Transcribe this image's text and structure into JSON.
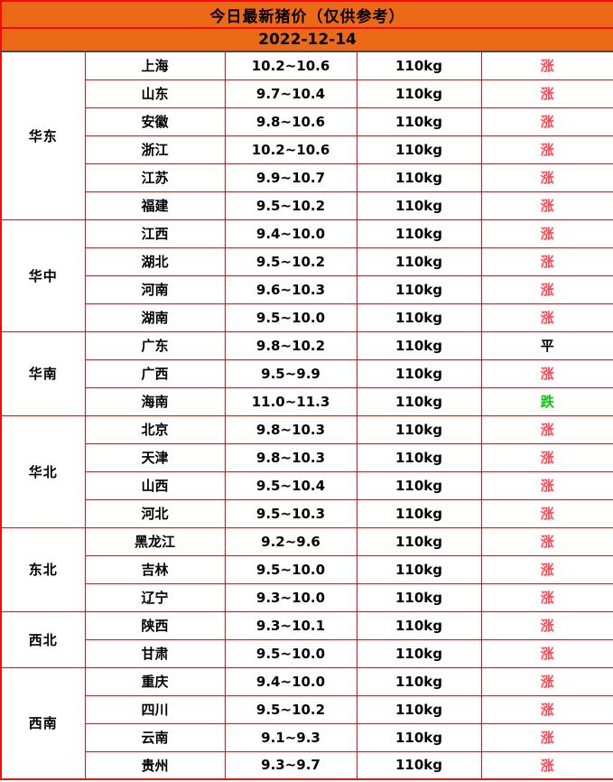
{
  "title": "今日最新猪价（仅供参考）",
  "date": "2022-12-14",
  "colors": {
    "header_bg": "#ec6a17",
    "grid_red": "#f40b0b",
    "header_bottom_divider": "#4a4a4a",
    "trend_rise": "#fb4753",
    "trend_flat": "#000000",
    "trend_fall": "#0bc50b",
    "text": "#000000"
  },
  "chart_data": {
    "type": "table",
    "title": "今日最新猪价（仅供参考）",
    "date": "2022-12-14",
    "weight_standard": "110kg",
    "trend_colors": {
      "涨": "#fb4753",
      "平": "#000000",
      "跌": "#0bc50b"
    },
    "regions": [
      {
        "name": "华东",
        "rows": [
          {
            "province": "上海",
            "price": "10.2~10.6",
            "weight": "110kg",
            "trend": "涨"
          },
          {
            "province": "山东",
            "price": "9.7~10.4",
            "weight": "110kg",
            "trend": "涨"
          },
          {
            "province": "安徽",
            "price": "9.8~10.6",
            "weight": "110kg",
            "trend": "涨"
          },
          {
            "province": "浙江",
            "price": "10.2~10.6",
            "weight": "110kg",
            "trend": "涨"
          },
          {
            "province": "江苏",
            "price": "9.9~10.7",
            "weight": "110kg",
            "trend": "涨"
          },
          {
            "province": "福建",
            "price": "9.5~10.2",
            "weight": "110kg",
            "trend": "涨"
          }
        ]
      },
      {
        "name": "华中",
        "rows": [
          {
            "province": "江西",
            "price": "9.4~10.0",
            "weight": "110kg",
            "trend": "涨"
          },
          {
            "province": "湖北",
            "price": "9.5~10.2",
            "weight": "110kg",
            "trend": "涨"
          },
          {
            "province": "河南",
            "price": "9.6~10.3",
            "weight": "110kg",
            "trend": "涨"
          },
          {
            "province": "湖南",
            "price": "9.5~10.0",
            "weight": "110kg",
            "trend": "涨"
          }
        ]
      },
      {
        "name": "华南",
        "rows": [
          {
            "province": "广东",
            "price": "9.8~10.2",
            "weight": "110kg",
            "trend": "平"
          },
          {
            "province": "广西",
            "price": "9.5~9.9",
            "weight": "110kg",
            "trend": "涨"
          },
          {
            "province": "海南",
            "price": "11.0~11.3",
            "weight": "110kg",
            "trend": "跌"
          }
        ]
      },
      {
        "name": "华北",
        "rows": [
          {
            "province": "北京",
            "price": "9.8~10.3",
            "weight": "110kg",
            "trend": "涨"
          },
          {
            "province": "天津",
            "price": "9.8~10.3",
            "weight": "110kg",
            "trend": "涨"
          },
          {
            "province": "山西",
            "price": "9.5~10.4",
            "weight": "110kg",
            "trend": "涨"
          },
          {
            "province": "河北",
            "price": "9.5~10.3",
            "weight": "110kg",
            "trend": "涨"
          }
        ]
      },
      {
        "name": "东北",
        "rows": [
          {
            "province": "黑龙江",
            "price": "9.2~9.6",
            "weight": "110kg",
            "trend": "涨"
          },
          {
            "province": "吉林",
            "price": "9.5~10.0",
            "weight": "110kg",
            "trend": "涨"
          },
          {
            "province": "辽宁",
            "price": "9.3~10.0",
            "weight": "110kg",
            "trend": "涨"
          }
        ]
      },
      {
        "name": "西北",
        "rows": [
          {
            "province": "陕西",
            "price": "9.3~10.1",
            "weight": "110kg",
            "trend": "涨"
          },
          {
            "province": "甘肃",
            "price": "9.5~10.0",
            "weight": "110kg",
            "trend": "涨"
          }
        ]
      },
      {
        "name": "西南",
        "rows": [
          {
            "province": "重庆",
            "price": "9.4~10.0",
            "weight": "110kg",
            "trend": "涨"
          },
          {
            "province": "四川",
            "price": "9.5~10.2",
            "weight": "110kg",
            "trend": "涨"
          },
          {
            "province": "云南",
            "price": "9.1~9.3",
            "weight": "110kg",
            "trend": "涨"
          },
          {
            "province": "贵州",
            "price": "9.3~9.7",
            "weight": "110kg",
            "trend": "涨"
          }
        ]
      }
    ]
  }
}
